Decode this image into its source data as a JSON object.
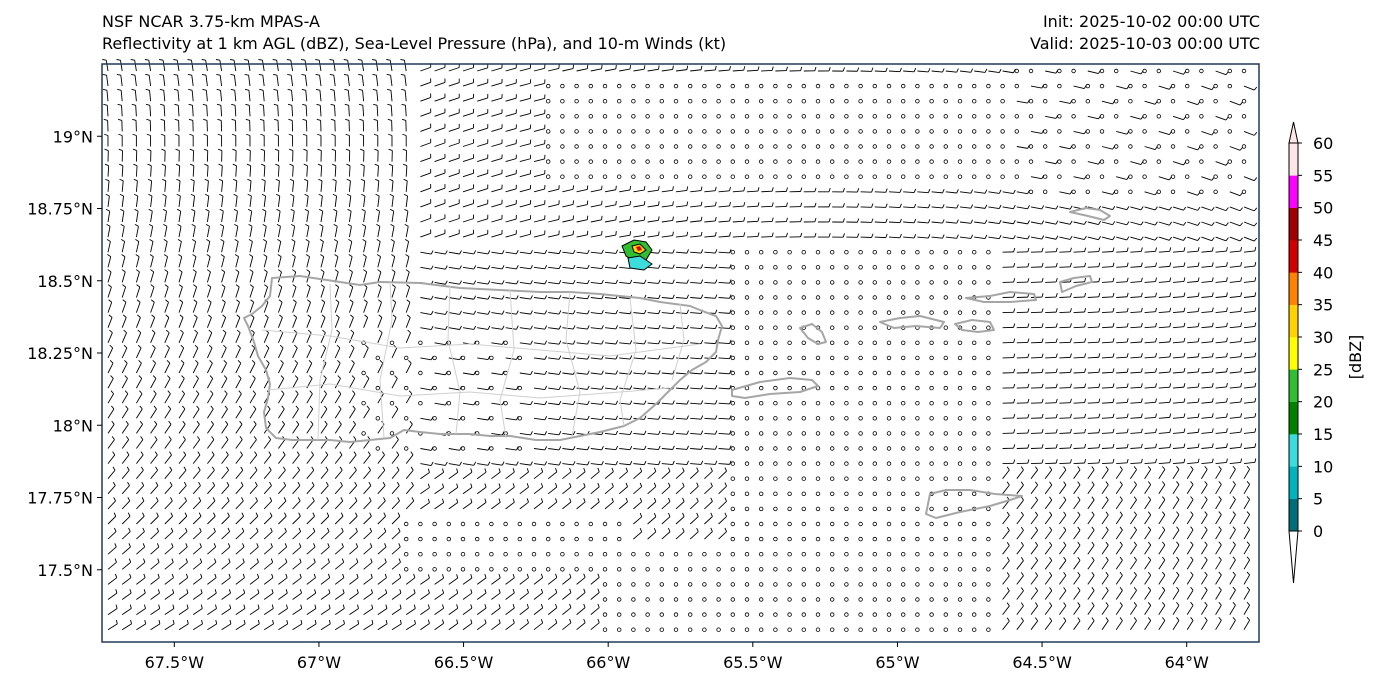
{
  "titles": {
    "left_line1": "NSF NCAR 3.75-km MPAS-A",
    "left_line2": "Reflectivity at 1 km AGL (dBZ), Sea-Level Pressure (hPa), and 10-m Winds (kt)",
    "right_line1": "Init: 2025-10-02 00:00 UTC",
    "right_line2": "Valid: 2025-10-03 00:00 UTC"
  },
  "map": {
    "lon_range": [
      -67.75,
      -63.75
    ],
    "lat_range": [
      17.25,
      19.25
    ],
    "lat_ticks": [
      {
        "value": 19.0,
        "label": "19°N"
      },
      {
        "value": 18.75,
        "label": "18.75°N"
      },
      {
        "value": 18.5,
        "label": "18.5°N"
      },
      {
        "value": 18.25,
        "label": "18.25°N"
      },
      {
        "value": 18.0,
        "label": "18°N"
      },
      {
        "value": 17.75,
        "label": "17.75°N"
      },
      {
        "value": 17.5,
        "label": "17.5°N"
      }
    ],
    "lon_ticks": [
      {
        "value": -67.5,
        "label": "67.5°W"
      },
      {
        "value": -67.0,
        "label": "67°W"
      },
      {
        "value": -66.5,
        "label": "66.5°W"
      },
      {
        "value": -66.0,
        "label": "66°W"
      },
      {
        "value": -65.5,
        "label": "65.5°W"
      },
      {
        "value": -65.0,
        "label": "65°W"
      },
      {
        "value": -64.5,
        "label": "64.5°W"
      },
      {
        "value": -64.0,
        "label": "64°W"
      }
    ],
    "land_outline_color": "#a6a6a6",
    "wind_barb_color": "#000000"
  },
  "colorbar": {
    "label": "[dBZ]",
    "ticks": [
      "0",
      "5",
      "10",
      "15",
      "20",
      "25",
      "30",
      "35",
      "40",
      "45",
      "50",
      "55",
      "60"
    ],
    "colors": [
      "#006e78",
      "#00b4be",
      "#3cdcdc",
      "#008200",
      "#32be32",
      "#ffff00",
      "#ffd200",
      "#ff8200",
      "#d20000",
      "#a00000",
      "#ff00ff",
      "#ffe6e6"
    ],
    "under_color": "#ffffff",
    "over_color": "#ffe6e6"
  }
}
